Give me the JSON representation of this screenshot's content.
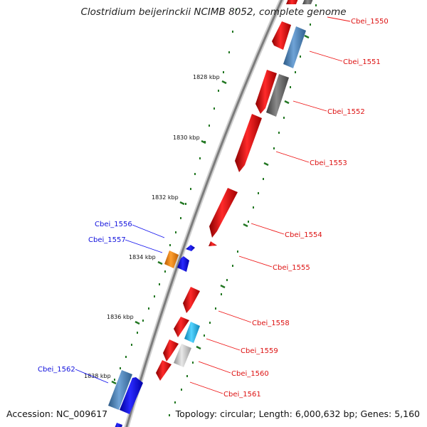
{
  "title": "Clostridium beijerinckii NCIMB 8052, complete genome",
  "accession": "Accession: NC_009617",
  "topology": "Topology: circular; Length: 6,000,632 bp; Genes: 5,160",
  "colors": {
    "forward_red": "#ee1111",
    "reverse_blue": "#1111ee",
    "steel_blue": "#4f86b8",
    "gray": "#6b6b6b",
    "light_gray": "#c4c4c4",
    "cyan": "#22bbee",
    "orange": "#ff8800",
    "backbone": "#8c8c8c",
    "tick_green": "#227722"
  },
  "kbp_ticks": [
    "1828 kbp",
    "1830 kbp",
    "1832 kbp",
    "1834 kbp",
    "1836 kbp",
    "1838 kbp"
  ],
  "genes": [
    {
      "id": "Cbei_1550",
      "label": "Cbei_1550",
      "strand": "+",
      "color": "forward_red"
    },
    {
      "id": "Cbei_1551",
      "label": "Cbei_1551",
      "strand": "+",
      "color": "forward_red"
    },
    {
      "id": "Cbei_1552",
      "label": "Cbei_1552",
      "strand": "+",
      "color": "forward_red"
    },
    {
      "id": "Cbei_1553",
      "label": "Cbei_1553",
      "strand": "+",
      "color": "forward_red"
    },
    {
      "id": "Cbei_1554",
      "label": "Cbei_1554",
      "strand": "+",
      "color": "forward_red"
    },
    {
      "id": "Cbei_1555",
      "label": "Cbei_1555",
      "strand": "+",
      "color": "forward_red"
    },
    {
      "id": "Cbei_1556",
      "label": "Cbei_1556",
      "strand": "-",
      "color": "reverse_blue"
    },
    {
      "id": "Cbei_1557",
      "label": "Cbei_1557",
      "strand": "-",
      "color": "reverse_blue"
    },
    {
      "id": "Cbei_1558",
      "label": "Cbei_1558",
      "strand": "+",
      "color": "forward_red"
    },
    {
      "id": "Cbei_1559",
      "label": "Cbei_1559",
      "strand": "+",
      "color": "forward_red"
    },
    {
      "id": "Cbei_1560",
      "label": "Cbei_1560",
      "strand": "+",
      "color": "forward_red"
    },
    {
      "id": "Cbei_1561",
      "label": "Cbei_1561",
      "strand": "+",
      "color": "forward_red"
    },
    {
      "id": "Cbei_1562",
      "label": "Cbei_1562",
      "strand": "-",
      "color": "reverse_blue"
    }
  ]
}
